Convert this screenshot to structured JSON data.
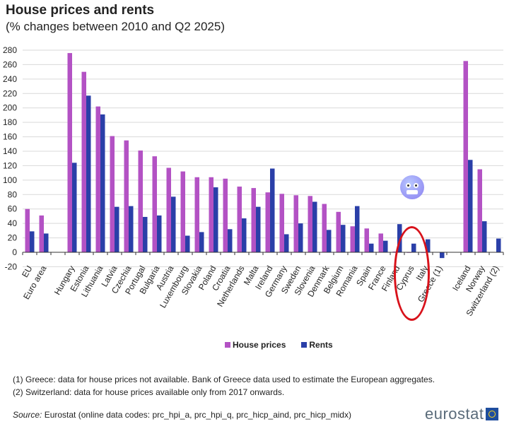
{
  "title": "House prices and rents",
  "subtitle": "(% changes between 2010 and Q2 2025)",
  "legend": {
    "house_prices": "House prices",
    "rents": "Rents"
  },
  "colors": {
    "house_prices": "#b352c4",
    "rents": "#2a3fa8",
    "grid": "#d9d9d9",
    "annotation": "#d8121b"
  },
  "notes": [
    "(1) Greece: data for house prices not available. Bank of Greece data used to estimate the European aggregates.",
    "(2) Switzerland: data for house prices available only from 2017 onwards."
  ],
  "source": {
    "label": "Source:",
    "text": " Eurostat (online data codes: prc_hpi_a, prc_hpi_q, prc_hicp_aind, prc_hicp_midx)"
  },
  "logo": "eurostat",
  "annotation": {
    "emoji": "cold-face-emoji",
    "circled_categories": [
      "Cyprus",
      "Italy"
    ]
  },
  "chart_data": {
    "type": "bar",
    "title": "House prices and rents",
    "subtitle": "(% changes between 2010 and Q2 2025)",
    "xlabel": "",
    "ylabel": "",
    "ylim": [
      -20,
      280
    ],
    "yticks": [
      -20,
      0,
      20,
      40,
      60,
      80,
      100,
      120,
      140,
      160,
      180,
      200,
      220,
      240,
      260,
      280
    ],
    "grid": true,
    "legend_position": "bottom",
    "categories": [
      "EU",
      "Euro area",
      "",
      "Hungary",
      "Estonia",
      "Lithuania",
      "Latvia",
      "Czechia",
      "Portugal",
      "Bulgaria",
      "Austria",
      "Luxembourg",
      "Slovakia",
      "Poland",
      "Croatia",
      "Netherlands",
      "Malta",
      "Ireland",
      "Germany",
      "Sweden",
      "Slovenia",
      "Denmark",
      "Belgium",
      "Romania",
      "Spain",
      "France",
      "Finland",
      "Cyprus",
      "Italy",
      "Greece (1)",
      "",
      "Iceland",
      "Norway",
      "Switzerland (2)"
    ],
    "series": [
      {
        "name": "House prices",
        "values": [
          60,
          51,
          null,
          276,
          250,
          202,
          161,
          155,
          141,
          133,
          117,
          112,
          104,
          104,
          102,
          91,
          89,
          83,
          81,
          79,
          78,
          67,
          56,
          36,
          33,
          26,
          1,
          0,
          0,
          null,
          null,
          265,
          115,
          null
        ]
      },
      {
        "name": "Rents",
        "values": [
          29,
          26,
          null,
          124,
          217,
          191,
          63,
          64,
          49,
          51,
          77,
          23,
          28,
          90,
          32,
          47,
          63,
          116,
          25,
          40,
          70,
          31,
          38,
          64,
          12,
          16,
          39,
          12,
          18,
          -8,
          null,
          128,
          43,
          19
        ]
      }
    ]
  }
}
